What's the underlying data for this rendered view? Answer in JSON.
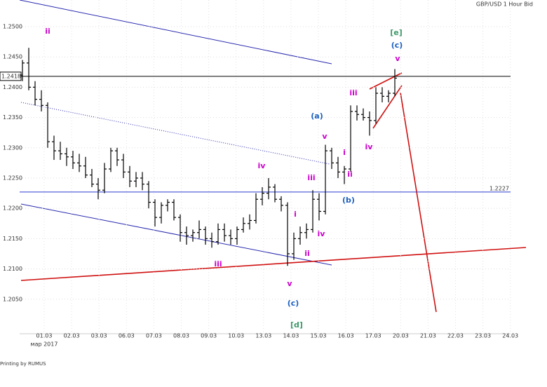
{
  "chart_data": {
    "type": "ohlc",
    "title": "GBP/USD 1 Hour Bid",
    "footer": "Printing by RUMUS",
    "color": "#000000",
    "ylim": [
      1.1993,
      1.2544
    ],
    "yticks": [
      {
        "value": 1.205,
        "label": "1.2050"
      },
      {
        "value": 1.21,
        "label": "1.2100"
      },
      {
        "value": 1.215,
        "label": "1.2150"
      },
      {
        "value": 1.22,
        "label": "1.2200"
      },
      {
        "value": 1.225,
        "label": "1.2250"
      },
      {
        "value": 1.23,
        "label": "1.2300"
      },
      {
        "value": 1.235,
        "label": "1.2350"
      },
      {
        "value": 1.24,
        "label": "1.2400"
      },
      {
        "value": 1.245,
        "label": "1.2450"
      },
      {
        "value": 1.25,
        "label": "1.2500"
      }
    ],
    "grid": true,
    "xticks": [
      "01.03",
      "02.03",
      "03.03",
      "06.03",
      "07.03",
      "08.03",
      "09.03",
      "10.03",
      "13.03",
      "14.03",
      "15.03",
      "16.03",
      "17.03",
      "20.03",
      "21.03",
      "22.03",
      "23.03",
      "24.03"
    ],
    "x_sublabel": "мар 2017",
    "open": [
      1.242,
      1.244,
      1.24,
      1.238,
      1.237,
      1.231,
      1.2295,
      1.229,
      1.2285,
      1.2275,
      1.227,
      1.2255,
      1.224,
      1.223,
      1.2265,
      1.2295,
      1.228,
      1.226,
      1.2245,
      1.225,
      1.224,
      1.221,
      1.2185,
      1.2205,
      1.221,
      1.2185,
      1.216,
      1.2155,
      1.216,
      1.2165,
      1.215,
      1.2145,
      1.2165,
      1.2155,
      1.215,
      1.2165,
      1.2175,
      1.218,
      1.2215,
      1.2225,
      1.2235,
      1.2215,
      1.2205,
      1.2125,
      1.215,
      1.216,
      1.2165,
      1.2215,
      1.2195,
      1.2295,
      1.2275,
      1.226,
      1.2265,
      1.236,
      1.2355,
      1.235,
      1.2345,
      1.239,
      1.2385,
      1.239
    ],
    "high": [
      1.2445,
      1.2465,
      1.241,
      1.2395,
      1.2375,
      1.232,
      1.231,
      1.23,
      1.2295,
      1.229,
      1.2285,
      1.2265,
      1.225,
      1.2275,
      1.23,
      1.23,
      1.229,
      1.227,
      1.226,
      1.226,
      1.2245,
      1.2215,
      1.221,
      1.2215,
      1.2215,
      1.219,
      1.217,
      1.2165,
      1.218,
      1.217,
      1.216,
      1.2175,
      1.2175,
      1.2165,
      1.217,
      1.2185,
      1.219,
      1.2225,
      1.2235,
      1.225,
      1.224,
      1.222,
      1.221,
      1.216,
      1.217,
      1.2175,
      1.223,
      1.2225,
      1.2305,
      1.23,
      1.2285,
      1.227,
      1.237,
      1.237,
      1.2365,
      1.236,
      1.24,
      1.24,
      1.2395,
      1.243
    ],
    "low": [
      1.241,
      1.2395,
      1.237,
      1.236,
      1.23,
      1.228,
      1.228,
      1.227,
      1.2265,
      1.226,
      1.225,
      1.2235,
      1.2215,
      1.2225,
      1.226,
      1.227,
      1.225,
      1.2235,
      1.2235,
      1.223,
      1.22,
      1.217,
      1.2175,
      1.2195,
      1.218,
      1.2145,
      1.214,
      1.2145,
      1.215,
      1.214,
      1.2135,
      1.214,
      1.2145,
      1.214,
      1.214,
      1.216,
      1.2165,
      1.2175,
      1.2205,
      1.2215,
      1.221,
      1.2195,
      1.2105,
      1.2115,
      1.214,
      1.215,
      1.216,
      1.218,
      1.219,
      1.2265,
      1.225,
      1.224,
      1.226,
      1.2345,
      1.2345,
      1.232,
      1.234,
      1.2375,
      1.2375,
      1.2385
    ],
    "close": [
      1.244,
      1.24,
      1.238,
      1.237,
      1.231,
      1.2295,
      1.229,
      1.2285,
      1.2275,
      1.227,
      1.2255,
      1.224,
      1.223,
      1.2265,
      1.2295,
      1.228,
      1.226,
      1.2245,
      1.225,
      1.224,
      1.221,
      1.2185,
      1.2205,
      1.221,
      1.2185,
      1.216,
      1.2155,
      1.216,
      1.2165,
      1.215,
      1.2145,
      1.2165,
      1.2155,
      1.215,
      1.2165,
      1.2175,
      1.218,
      1.2215,
      1.2225,
      1.2235,
      1.2215,
      1.2205,
      1.2125,
      1.215,
      1.216,
      1.2165,
      1.2215,
      1.2195,
      1.2295,
      1.2275,
      1.226,
      1.2265,
      1.236,
      1.2355,
      1.235,
      1.2345,
      1.239,
      1.2385,
      1.239,
      1.2415
    ],
    "hlines": [
      {
        "value": 1.2418,
        "color": "#000000"
      },
      {
        "value": 1.2227,
        "color": "#2a3bd0"
      }
    ],
    "annotations": [
      {
        "text": "ii",
        "color": "#cc00cc"
      },
      {
        "text": "[e]",
        "color": "#3f9a6a"
      },
      {
        "text": "(c)",
        "color": "#1b5fc0"
      },
      {
        "text": "v",
        "color": "#cc00cc"
      },
      {
        "text": "iii",
        "color": "#cc00cc"
      },
      {
        "text": "(a)",
        "color": "#1b5fc0"
      },
      {
        "text": "v",
        "color": "#cc00cc"
      },
      {
        "text": "i",
        "color": "#cc00cc"
      },
      {
        "text": "iv",
        "color": "#cc00cc"
      },
      {
        "text": "ii",
        "color": "#cc00cc"
      },
      {
        "text": "iv",
        "color": "#cc00cc"
      },
      {
        "text": "iii",
        "color": "#cc00cc"
      },
      {
        "text": "(b)",
        "color": "#1b5fc0"
      },
      {
        "text": "i",
        "color": "#cc00cc"
      },
      {
        "text": "iv",
        "color": "#cc00cc"
      },
      {
        "text": "ii",
        "color": "#cc00cc"
      },
      {
        "text": "iii",
        "color": "#cc00cc"
      },
      {
        "text": "v",
        "color": "#cc00cc"
      },
      {
        "text": "(c)",
        "color": "#1b5fc0"
      },
      {
        "text": "[d]",
        "color": "#3f9a6a"
      }
    ]
  }
}
